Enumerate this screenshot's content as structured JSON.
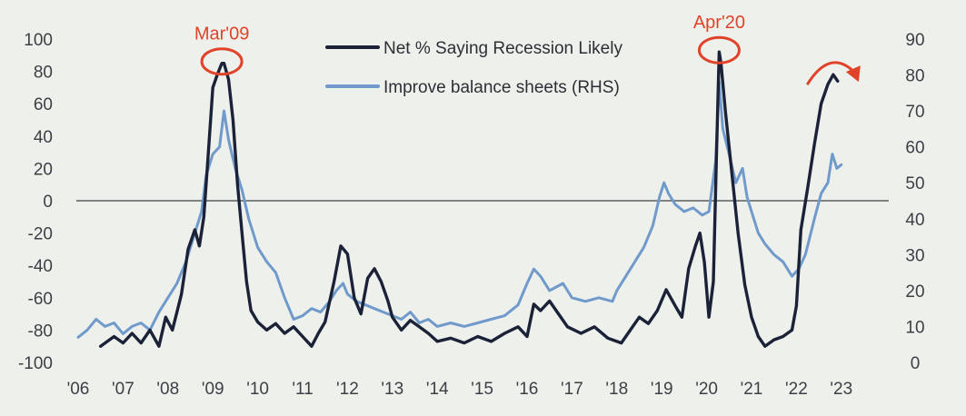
{
  "chart_data": {
    "type": "line",
    "title": "",
    "xlabel": "",
    "ylabel": "",
    "x_tick_labels": [
      "'06",
      "'07",
      "'08",
      "'09",
      "'10",
      "'11",
      "'12",
      "'13",
      "'14",
      "'15",
      "'16",
      "'17",
      "'18",
      "'19",
      "'20",
      "'21",
      "'22",
      "'23"
    ],
    "y_left": {
      "lim": [
        -100,
        100
      ],
      "ticks": [
        100,
        80,
        60,
        40,
        20,
        0,
        -20,
        -40,
        -60,
        -80,
        -100
      ]
    },
    "y_right": {
      "lim": [
        0,
        90
      ],
      "ticks": [
        90,
        80,
        70,
        60,
        50,
        40,
        30,
        20,
        10,
        0
      ]
    },
    "x_range": [
      2006,
      2023.6
    ],
    "zero_line": true,
    "grid": false,
    "legend_position": "top-center",
    "series": [
      {
        "name": "Net % Saying Recession Likely",
        "axis": "left",
        "color": "#1b2238",
        "points": [
          [
            2006.5,
            -90
          ],
          [
            2006.8,
            -84
          ],
          [
            2007.0,
            -88
          ],
          [
            2007.2,
            -82
          ],
          [
            2007.4,
            -88
          ],
          [
            2007.6,
            -80
          ],
          [
            2007.8,
            -90
          ],
          [
            2007.95,
            -72
          ],
          [
            2008.1,
            -80
          ],
          [
            2008.3,
            -58
          ],
          [
            2008.45,
            -30
          ],
          [
            2008.6,
            -18
          ],
          [
            2008.7,
            -28
          ],
          [
            2008.8,
            -10
          ],
          [
            2008.9,
            30
          ],
          [
            2009.0,
            70
          ],
          [
            2009.1,
            78
          ],
          [
            2009.2,
            85
          ],
          [
            2009.25,
            85
          ],
          [
            2009.35,
            75
          ],
          [
            2009.45,
            50
          ],
          [
            2009.55,
            10
          ],
          [
            2009.65,
            -20
          ],
          [
            2009.75,
            -50
          ],
          [
            2009.85,
            -68
          ],
          [
            2010.0,
            -75
          ],
          [
            2010.2,
            -80
          ],
          [
            2010.4,
            -76
          ],
          [
            2010.6,
            -82
          ],
          [
            2010.8,
            -78
          ],
          [
            2011.0,
            -84
          ],
          [
            2011.2,
            -90
          ],
          [
            2011.35,
            -82
          ],
          [
            2011.5,
            -75
          ],
          [
            2011.7,
            -50
          ],
          [
            2011.85,
            -28
          ],
          [
            2012.0,
            -33
          ],
          [
            2012.15,
            -60
          ],
          [
            2012.3,
            -70
          ],
          [
            2012.45,
            -48
          ],
          [
            2012.6,
            -42
          ],
          [
            2012.75,
            -50
          ],
          [
            2012.9,
            -62
          ],
          [
            2013.0,
            -72
          ],
          [
            2013.2,
            -80
          ],
          [
            2013.4,
            -74
          ],
          [
            2013.6,
            -78
          ],
          [
            2013.8,
            -82
          ],
          [
            2014.0,
            -87
          ],
          [
            2014.3,
            -85
          ],
          [
            2014.6,
            -88
          ],
          [
            2014.9,
            -84
          ],
          [
            2015.2,
            -87
          ],
          [
            2015.5,
            -82
          ],
          [
            2015.8,
            -78
          ],
          [
            2016.0,
            -84
          ],
          [
            2016.15,
            -64
          ],
          [
            2016.3,
            -68
          ],
          [
            2016.5,
            -62
          ],
          [
            2016.7,
            -70
          ],
          [
            2016.9,
            -78
          ],
          [
            2017.2,
            -82
          ],
          [
            2017.5,
            -78
          ],
          [
            2017.8,
            -85
          ],
          [
            2018.1,
            -88
          ],
          [
            2018.3,
            -80
          ],
          [
            2018.5,
            -72
          ],
          [
            2018.7,
            -76
          ],
          [
            2018.9,
            -68
          ],
          [
            2019.1,
            -55
          ],
          [
            2019.3,
            -65
          ],
          [
            2019.45,
            -72
          ],
          [
            2019.6,
            -42
          ],
          [
            2019.75,
            -28
          ],
          [
            2019.85,
            -20
          ],
          [
            2019.95,
            -38
          ],
          [
            2020.05,
            -72
          ],
          [
            2020.15,
            -50
          ],
          [
            2020.22,
            30
          ],
          [
            2020.28,
            92
          ],
          [
            2020.32,
            85
          ],
          [
            2020.42,
            55
          ],
          [
            2020.55,
            20
          ],
          [
            2020.7,
            -20
          ],
          [
            2020.85,
            -52
          ],
          [
            2021.0,
            -72
          ],
          [
            2021.15,
            -84
          ],
          [
            2021.3,
            -90
          ],
          [
            2021.5,
            -86
          ],
          [
            2021.7,
            -84
          ],
          [
            2021.9,
            -80
          ],
          [
            2022.0,
            -65
          ],
          [
            2022.1,
            -18
          ],
          [
            2022.25,
            8
          ],
          [
            2022.4,
            35
          ],
          [
            2022.55,
            60
          ],
          [
            2022.7,
            72
          ],
          [
            2022.82,
            78
          ],
          [
            2022.92,
            74
          ]
        ]
      },
      {
        "name": "Improve balance sheets (RHS)",
        "axis": "right",
        "color": "#6f9acb",
        "points": [
          [
            2006.0,
            7
          ],
          [
            2006.2,
            9
          ],
          [
            2006.4,
            12
          ],
          [
            2006.6,
            10
          ],
          [
            2006.8,
            11
          ],
          [
            2007.0,
            8
          ],
          [
            2007.2,
            10
          ],
          [
            2007.4,
            11
          ],
          [
            2007.6,
            9
          ],
          [
            2007.8,
            14
          ],
          [
            2008.0,
            18
          ],
          [
            2008.2,
            22
          ],
          [
            2008.4,
            28
          ],
          [
            2008.6,
            36
          ],
          [
            2008.75,
            42
          ],
          [
            2008.85,
            52
          ],
          [
            2009.0,
            58
          ],
          [
            2009.15,
            60
          ],
          [
            2009.25,
            70
          ],
          [
            2009.35,
            62
          ],
          [
            2009.5,
            54
          ],
          [
            2009.65,
            48
          ],
          [
            2009.8,
            40
          ],
          [
            2010.0,
            32
          ],
          [
            2010.2,
            28
          ],
          [
            2010.4,
            25
          ],
          [
            2010.6,
            18
          ],
          [
            2010.8,
            12
          ],
          [
            2011.0,
            13
          ],
          [
            2011.2,
            15
          ],
          [
            2011.4,
            14
          ],
          [
            2011.6,
            17
          ],
          [
            2011.75,
            20
          ],
          [
            2011.9,
            22
          ],
          [
            2012.0,
            19
          ],
          [
            2012.2,
            17
          ],
          [
            2012.4,
            16
          ],
          [
            2012.6,
            15
          ],
          [
            2012.8,
            14
          ],
          [
            2013.0,
            13
          ],
          [
            2013.2,
            12
          ],
          [
            2013.4,
            14
          ],
          [
            2013.6,
            11
          ],
          [
            2013.8,
            12
          ],
          [
            2014.0,
            10
          ],
          [
            2014.3,
            11
          ],
          [
            2014.6,
            10
          ],
          [
            2014.9,
            11
          ],
          [
            2015.2,
            12
          ],
          [
            2015.5,
            13
          ],
          [
            2015.8,
            16
          ],
          [
            2016.0,
            22
          ],
          [
            2016.15,
            26
          ],
          [
            2016.3,
            24
          ],
          [
            2016.5,
            20
          ],
          [
            2016.8,
            22
          ],
          [
            2017.0,
            18
          ],
          [
            2017.3,
            17
          ],
          [
            2017.6,
            18
          ],
          [
            2017.9,
            17
          ],
          [
            2018.0,
            20
          ],
          [
            2018.2,
            24
          ],
          [
            2018.4,
            28
          ],
          [
            2018.6,
            32
          ],
          [
            2018.8,
            38
          ],
          [
            2018.95,
            46
          ],
          [
            2019.05,
            50
          ],
          [
            2019.15,
            47
          ],
          [
            2019.3,
            44
          ],
          [
            2019.5,
            42
          ],
          [
            2019.7,
            43
          ],
          [
            2019.9,
            41
          ],
          [
            2020.05,
            42
          ],
          [
            2020.2,
            56
          ],
          [
            2020.28,
            78
          ],
          [
            2020.36,
            65
          ],
          [
            2020.5,
            58
          ],
          [
            2020.65,
            50
          ],
          [
            2020.8,
            54
          ],
          [
            2020.9,
            46
          ],
          [
            2021.0,
            42
          ],
          [
            2021.15,
            36
          ],
          [
            2021.3,
            33
          ],
          [
            2021.5,
            30
          ],
          [
            2021.7,
            28
          ],
          [
            2021.9,
            24
          ],
          [
            2022.05,
            26
          ],
          [
            2022.2,
            30
          ],
          [
            2022.4,
            40
          ],
          [
            2022.55,
            47
          ],
          [
            2022.7,
            50
          ],
          [
            2022.8,
            58
          ],
          [
            2022.9,
            54
          ],
          [
            2023.0,
            55
          ]
        ]
      }
    ],
    "annotations": [
      {
        "label": "Mar'09",
        "x": 2009.2,
        "y": 85,
        "axis": "left",
        "style": "circle"
      },
      {
        "label": "Apr'20",
        "x": 2020.28,
        "y": 92,
        "axis": "left",
        "style": "circle"
      },
      {
        "label": "",
        "x": 2022.9,
        "y": 78,
        "axis": "left",
        "style": "curved-arrow-down"
      }
    ]
  }
}
